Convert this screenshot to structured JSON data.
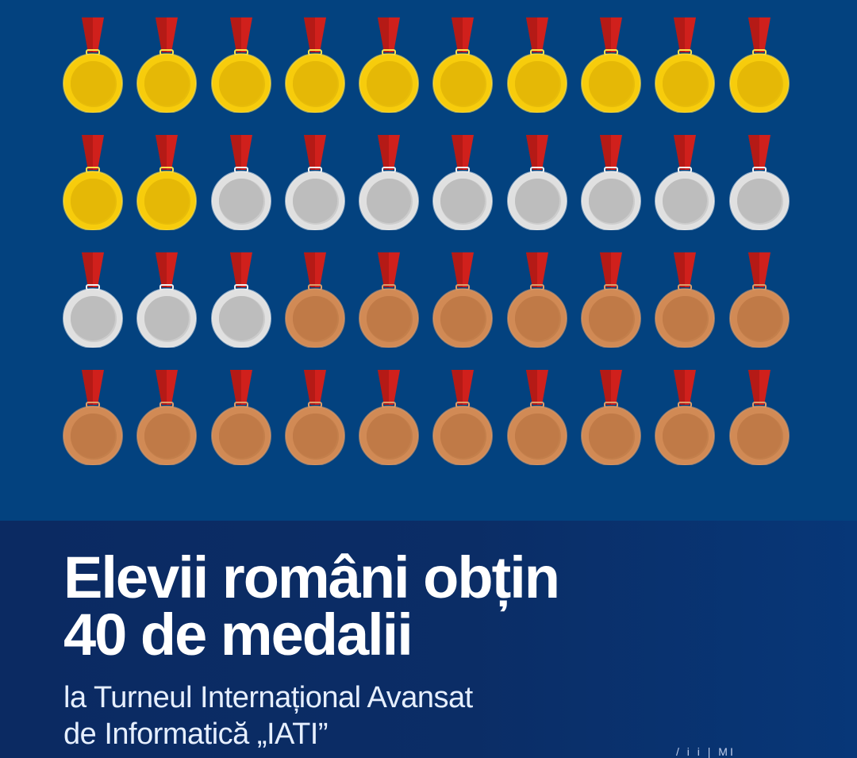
{
  "infographic": {
    "medal_counts": {
      "gold": 12,
      "silver": 11,
      "bronze": 17,
      "total": 40
    },
    "grid": {
      "columns": 10,
      "rows": 4
    },
    "medals": [
      "gold",
      "gold",
      "gold",
      "gold",
      "gold",
      "gold",
      "gold",
      "gold",
      "gold",
      "gold",
      "gold",
      "gold",
      "silver",
      "silver",
      "silver",
      "silver",
      "silver",
      "silver",
      "silver",
      "silver",
      "silver",
      "silver",
      "silver",
      "bronze",
      "bronze",
      "bronze",
      "bronze",
      "bronze",
      "bronze",
      "bronze",
      "bronze",
      "bronze",
      "bronze",
      "bronze",
      "bronze",
      "bronze",
      "bronze",
      "bronze",
      "bronze",
      "bronze"
    ],
    "colors": {
      "background_top": "#03427f",
      "background_bottom": "#0b2a62",
      "ribbon": "#d0201c",
      "ribbon_shade": "#b51a16",
      "gold_rim": "#f7cc0c",
      "gold_face": "#e5b806",
      "silver_rim": "#e0e0e0",
      "silver_face": "#bdbdbd",
      "bronze_rim": "#d18a55",
      "bronze_face": "#c07a47"
    }
  },
  "headline": {
    "line1": "Elevii români obțin",
    "line2": "40 de medalii"
  },
  "subtitle": {
    "line1": "la Turneul Internațional Avansat",
    "line2": "de Informatică „IATI”"
  },
  "corner_text": "/ i i | MI"
}
